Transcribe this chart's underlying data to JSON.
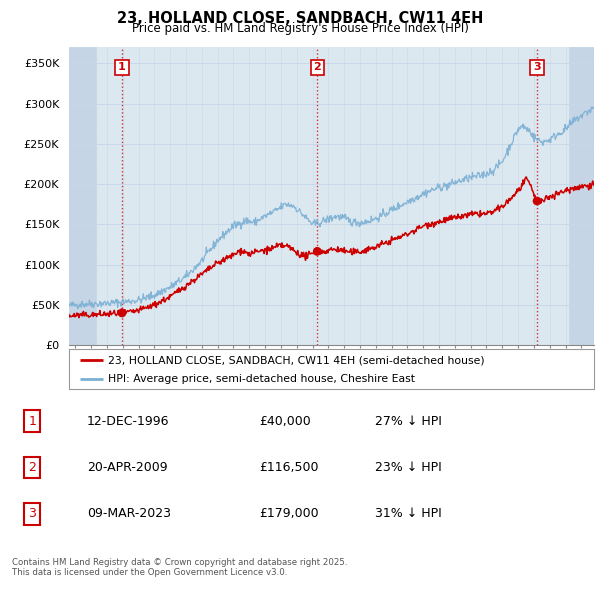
{
  "title": "23, HOLLAND CLOSE, SANDBACH, CW11 4EH",
  "subtitle": "Price paid vs. HM Land Registry's House Price Index (HPI)",
  "ylabel_ticks": [
    "£0",
    "£50K",
    "£100K",
    "£150K",
    "£200K",
    "£250K",
    "£300K",
    "£350K"
  ],
  "ylim": [
    0,
    370000
  ],
  "xlim_start": 1993.6,
  "xlim_end": 2026.8,
  "hpi_color": "#7bafd4",
  "price_color": "#cc0000",
  "sale_marker_color": "#cc0000",
  "annotation_box_color": "#cc0000",
  "grid_color": "#c8d8e8",
  "plot_bg_color": "#dce8f0",
  "hatch_left_color": "#c5d5e5",
  "hatch_right_color": "#c5d5e5",
  "legend_label_red": "23, HOLLAND CLOSE, SANDBACH, CW11 4EH (semi-detached house)",
  "legend_label_blue": "HPI: Average price, semi-detached house, Cheshire East",
  "sales": [
    {
      "num": 1,
      "date_label": "12-DEC-1996",
      "price_label": "£40,000",
      "pct_label": "27% ↓ HPI",
      "year": 1996.95,
      "price": 40000
    },
    {
      "num": 2,
      "date_label": "20-APR-2009",
      "price_label": "£116,500",
      "pct_label": "23% ↓ HPI",
      "year": 2009.3,
      "price": 116500
    },
    {
      "num": 3,
      "date_label": "09-MAR-2023",
      "price_label": "£179,000",
      "pct_label": "31% ↓ HPI",
      "year": 2023.2,
      "price": 179000
    }
  ],
  "footer": "Contains HM Land Registry data © Crown copyright and database right 2025.\nThis data is licensed under the Open Government Licence v3.0.",
  "background_color": "#ffffff"
}
